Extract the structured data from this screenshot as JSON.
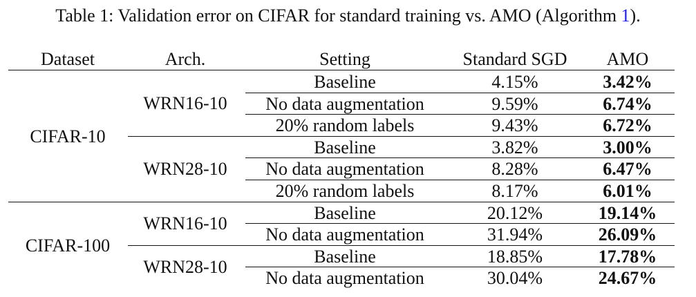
{
  "caption": {
    "prefix": "Table 1: Validation error on CIFAR for standard training vs. AMO (Algorithm ",
    "ref": "1",
    "suffix": ")."
  },
  "table": {
    "headers": [
      "Dataset",
      "Arch.",
      "Setting",
      "Standard SGD",
      "AMO"
    ],
    "groups": [
      {
        "dataset": "CIFAR-10",
        "archs": [
          {
            "name": "WRN16-10",
            "rows": [
              {
                "setting": "Baseline",
                "sgd": "4.15%",
                "amo": "3.42%"
              },
              {
                "setting": "No data augmentation",
                "sgd": "9.59%",
                "amo": "6.74%"
              },
              {
                "setting": "20% random labels",
                "sgd": "9.43%",
                "amo": "6.72%"
              }
            ]
          },
          {
            "name": "WRN28-10",
            "rows": [
              {
                "setting": "Baseline",
                "sgd": "3.82%",
                "amo": "3.00%"
              },
              {
                "setting": "No data augmentation",
                "sgd": "8.28%",
                "amo": "6.47%"
              },
              {
                "setting": "20% random labels",
                "sgd": "8.17%",
                "amo": "6.01%"
              }
            ]
          }
        ]
      },
      {
        "dataset": "CIFAR-100",
        "archs": [
          {
            "name": "WRN16-10",
            "rows": [
              {
                "setting": "Baseline",
                "sgd": "20.12%",
                "amo": "19.14%"
              },
              {
                "setting": "No data augmentation",
                "sgd": "31.94%",
                "amo": "26.09%"
              }
            ]
          },
          {
            "name": "WRN28-10",
            "rows": [
              {
                "setting": "Baseline",
                "sgd": "18.85%",
                "amo": "17.78%"
              },
              {
                "setting": "No data augmentation",
                "sgd": "30.04%",
                "amo": "24.67%"
              }
            ]
          }
        ]
      }
    ]
  }
}
